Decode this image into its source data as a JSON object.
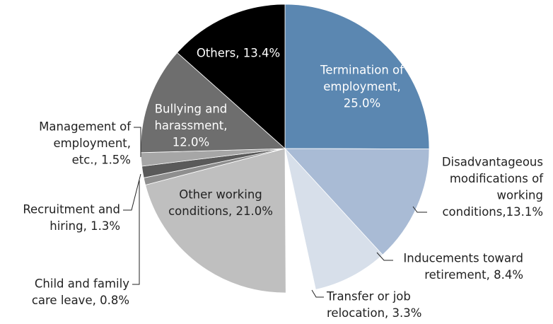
{
  "chart_data": {
    "type": "pie",
    "labels": [
      [
        "Termination of",
        "employment,",
        "25.0%"
      ],
      [
        "Disadvantageous",
        "modifications of",
        "working",
        "conditions,13.1%"
      ],
      [
        "Inducements toward",
        "retirement, 8.4%"
      ],
      [
        "Transfer or job",
        "relocation, 3.3%"
      ],
      [
        "Other working",
        "conditions, 21.0%"
      ],
      [
        "Child and family",
        "care leave, 0.8%"
      ],
      [
        "Recruitment and",
        "hiring, 1.3%"
      ],
      [
        "Management of",
        "employment,",
        "etc., 1.5%"
      ],
      [
        "Bullying and",
        "harassment,",
        "12.0%"
      ],
      [
        "Others, 13.4%"
      ]
    ],
    "values": [
      25.0,
      13.1,
      8.4,
      3.3,
      21.0,
      0.8,
      1.3,
      1.5,
      12.0,
      13.4
    ],
    "colors": [
      "#5b87b1",
      "#a9bbd5",
      "#d7dfea",
      "#ffffff",
      "#bfbfbf",
      "#8e8e8e",
      "#5a5a5a",
      "#a6a6a6",
      "#6e6e6e",
      "#000000"
    ]
  }
}
